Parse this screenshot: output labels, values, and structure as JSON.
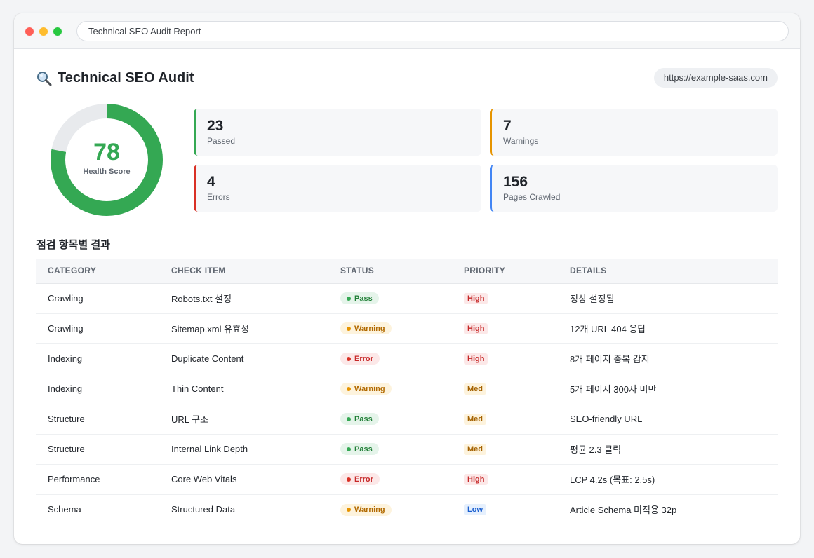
{
  "window": {
    "address_bar": "Technical SEO Audit Report"
  },
  "header": {
    "title": "Technical SEO Audit",
    "title_icon": "magnifier-icon",
    "site_url": "https://example-saas.com"
  },
  "health": {
    "score": "78",
    "label": "Health Score",
    "fraction": 0.78,
    "color": "#34a853",
    "track_color": "#e8eaed"
  },
  "stats": [
    {
      "value": "23",
      "label": "Passed",
      "accent": "#34a853"
    },
    {
      "value": "7",
      "label": "Warnings",
      "accent": "#e69400"
    },
    {
      "value": "4",
      "label": "Errors",
      "accent": "#d93025"
    },
    {
      "value": "156",
      "label": "Pages Crawled",
      "accent": "#4285f4"
    }
  ],
  "results": {
    "section_title": "점검 항목별 결과",
    "columns": [
      "CATEGORY",
      "CHECK ITEM",
      "STATUS",
      "PRIORITY",
      "DETAILS"
    ],
    "rows": [
      {
        "category": "Crawling",
        "item": "Robots.txt 설정",
        "status": "Pass",
        "status_kind": "pass",
        "priority": "High",
        "priority_kind": "high",
        "details": "정상 설정됨"
      },
      {
        "category": "Crawling",
        "item": "Sitemap.xml 유효성",
        "status": "Warning",
        "status_kind": "warn",
        "priority": "High",
        "priority_kind": "high",
        "details": "12개 URL 404 응답"
      },
      {
        "category": "Indexing",
        "item": "Duplicate Content",
        "status": "Error",
        "status_kind": "error",
        "priority": "High",
        "priority_kind": "high",
        "details": "8개 페이지 중복 감지"
      },
      {
        "category": "Indexing",
        "item": "Thin Content",
        "status": "Warning",
        "status_kind": "warn",
        "priority": "Med",
        "priority_kind": "med",
        "details": "5개 페이지 300자 미만"
      },
      {
        "category": "Structure",
        "item": "URL 구조",
        "status": "Pass",
        "status_kind": "pass",
        "priority": "Med",
        "priority_kind": "med",
        "details": "SEO-friendly URL"
      },
      {
        "category": "Structure",
        "item": "Internal Link Depth",
        "status": "Pass",
        "status_kind": "pass",
        "priority": "Med",
        "priority_kind": "med",
        "details": "평균 2.3 클릭"
      },
      {
        "category": "Performance",
        "item": "Core Web Vitals",
        "status": "Error",
        "status_kind": "error",
        "priority": "High",
        "priority_kind": "high",
        "details": "LCP 4.2s (목표: 2.5s)"
      },
      {
        "category": "Schema",
        "item": "Structured Data",
        "status": "Warning",
        "status_kind": "warn",
        "priority": "Low",
        "priority_kind": "low",
        "details": "Article Schema 미적용 32p"
      }
    ]
  }
}
